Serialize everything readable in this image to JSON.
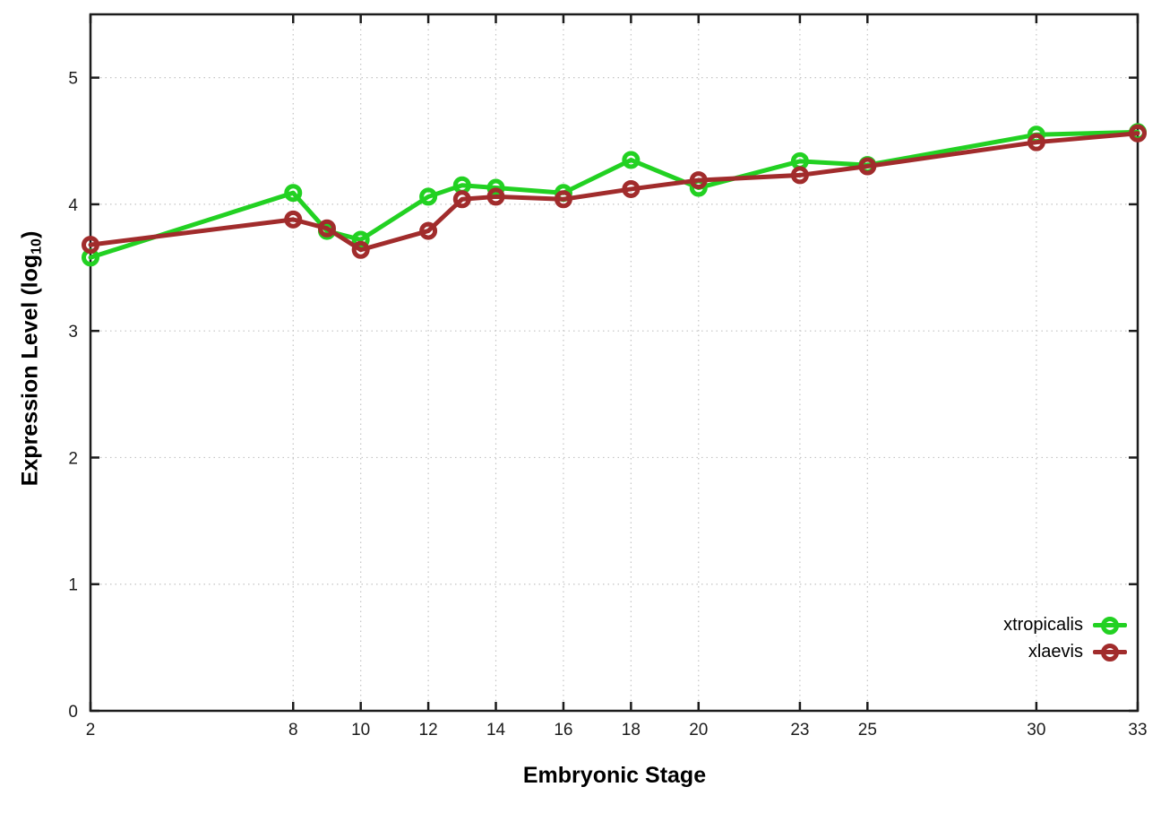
{
  "figure": {
    "background": "#ffffff",
    "border_color": "#1c1c1c",
    "grid_color": "#c3c3c3",
    "tick_label_color": "#1c1c1c"
  },
  "chart_data": {
    "type": "line",
    "title": "",
    "xlabel": "Embryonic Stage",
    "ylabel": "Expression Level (log10)",
    "ylabel_parts": {
      "prefix": "Expression Level (log",
      "sub": "10",
      "suffix": ")"
    },
    "x": [
      2,
      8,
      9,
      10,
      12,
      13,
      14,
      16,
      18,
      20,
      23,
      25,
      30,
      33
    ],
    "xticks": [
      2,
      8,
      10,
      12,
      14,
      16,
      18,
      20,
      23,
      25,
      30,
      33
    ],
    "yticks": [
      0,
      1,
      2,
      3,
      4,
      5
    ],
    "xlim": [
      2,
      33
    ],
    "ylim": [
      0,
      5.5
    ],
    "grid": true,
    "grid_style": "dotted",
    "legend_position": "inside-bottom-right",
    "marker": "open-circle",
    "series": [
      {
        "name": "xtropicalis",
        "color": "#22d122",
        "values": [
          3.58,
          4.09,
          3.79,
          3.72,
          4.06,
          4.15,
          4.13,
          4.09,
          4.35,
          4.13,
          4.34,
          4.31,
          4.55,
          4.57
        ]
      },
      {
        "name": "xlaevis",
        "color": "#a12c2c",
        "values": [
          3.68,
          3.88,
          3.81,
          3.64,
          3.79,
          4.04,
          4.06,
          4.04,
          4.12,
          4.19,
          4.23,
          4.3,
          4.49,
          4.56
        ]
      }
    ]
  }
}
